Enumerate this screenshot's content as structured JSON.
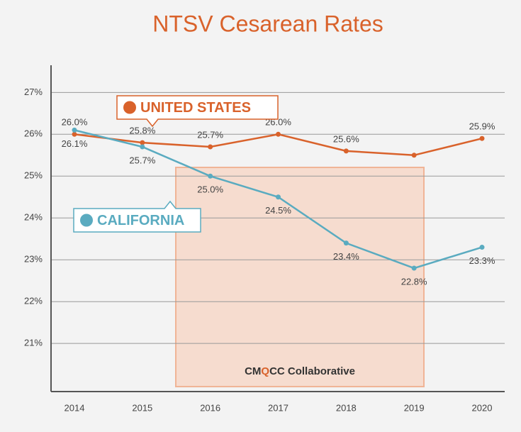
{
  "chart_data": {
    "type": "line",
    "title": "NTSV Cesarean Rates",
    "x": [
      2014,
      2015,
      2016,
      2017,
      2018,
      2019,
      2020
    ],
    "xlim": [
      2014,
      2020
    ],
    "xticks": [
      2014,
      2015,
      2016,
      2017,
      2018,
      2019,
      2020
    ],
    "ylim": [
      19.85,
      27.65
    ],
    "yticks": [
      {
        "value": 21,
        "label": "21%"
      },
      {
        "value": 22,
        "label": "22%"
      },
      {
        "value": 23,
        "label": "23%"
      },
      {
        "value": 24,
        "label": "24%"
      },
      {
        "value": 25,
        "label": "25%"
      },
      {
        "value": 26,
        "label": "26%"
      },
      {
        "value": 27,
        "label": "27%"
      }
    ],
    "grid": true,
    "series": [
      {
        "name": "UNITED STATES",
        "color": "#d9622b",
        "values": [
          26.0,
          25.8,
          25.7,
          26.0,
          25.6,
          25.5,
          25.9
        ],
        "value_labels": [
          "26.0%",
          "25.8%",
          "25.7%",
          "26.0%",
          "25.6%",
          null,
          "25.9%"
        ]
      },
      {
        "name": "CALIFORNIA",
        "color": "#5aabc0",
        "values": [
          26.1,
          25.7,
          25.0,
          24.5,
          23.4,
          22.8,
          23.3
        ],
        "value_labels": [
          "26.1%",
          "25.7%",
          "25.0%",
          "24.5%",
          "23.4%",
          "22.8%",
          "23.3%"
        ]
      }
    ],
    "annotation": {
      "parts": [
        "CM",
        "Q",
        "CC Collaborative"
      ],
      "highlight_color": "#d9622b"
    }
  }
}
